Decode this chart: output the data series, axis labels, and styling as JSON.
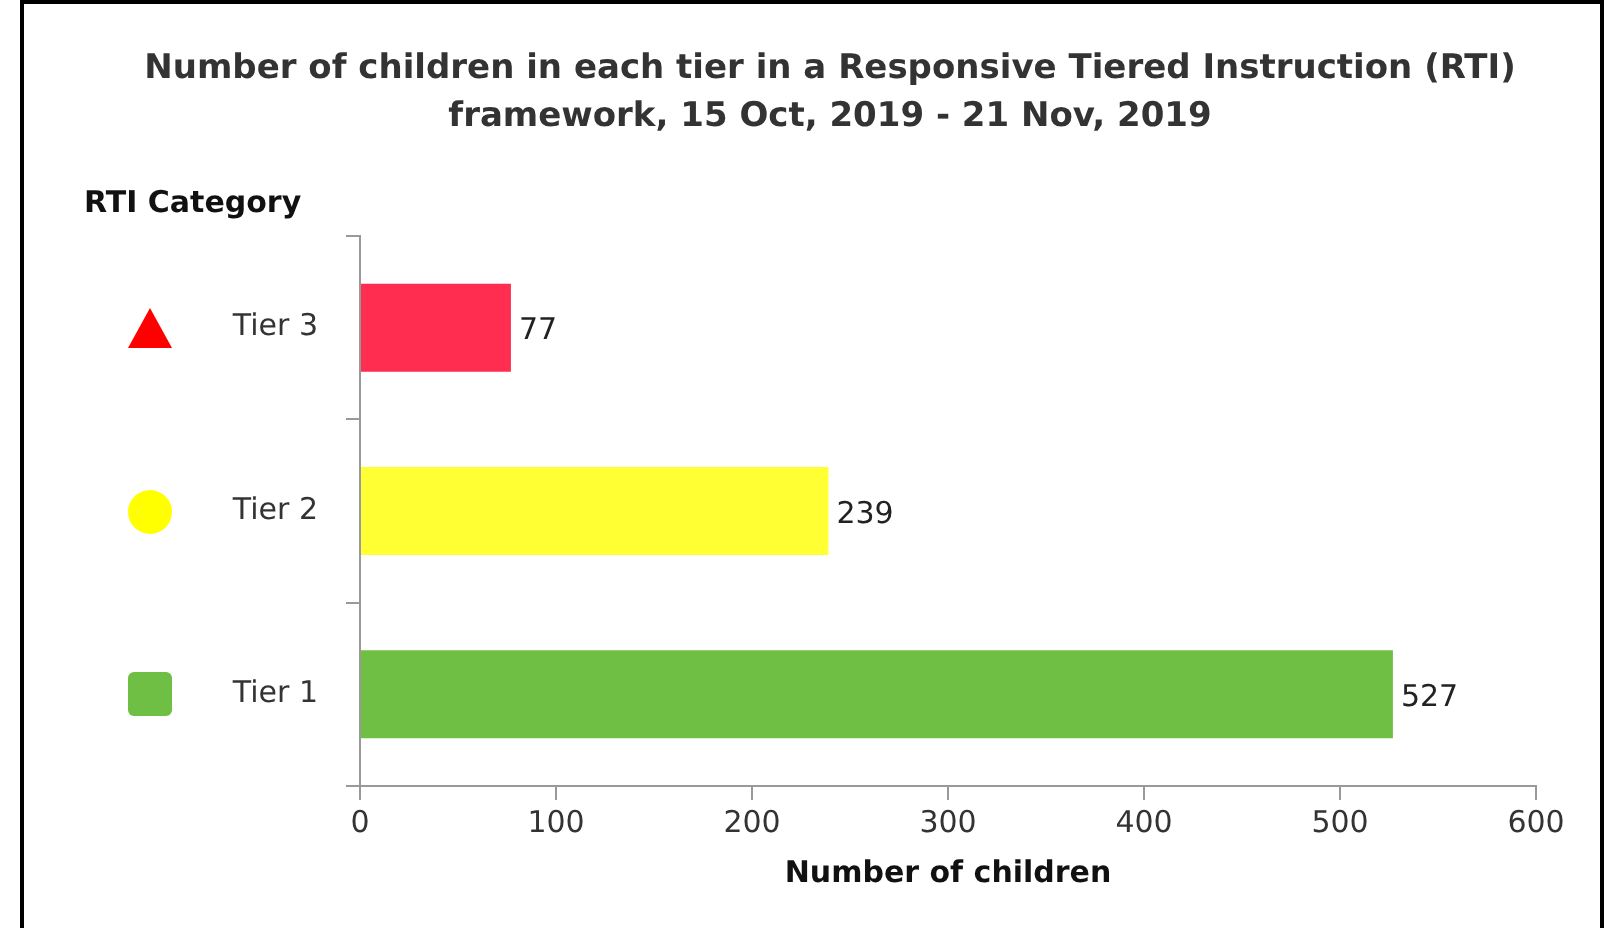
{
  "chart_data": {
    "type": "bar",
    "orientation": "horizontal",
    "title": "Number of children in each tier in a Responsive Tiered Instruction (RTI) framework, 15 Oct, 2019 - 21 Nov, 2019",
    "xlabel": "Number of children",
    "ylabel": "RTI Category",
    "categories": [
      "Tier 3",
      "Tier 2",
      "Tier 1"
    ],
    "values": [
      77,
      239,
      527
    ],
    "colors": [
      "#ff2d4f",
      "#ffff33",
      "#6fbf44"
    ],
    "xlim": [
      0,
      600
    ],
    "xticks": [
      0,
      100,
      200,
      300,
      400,
      500,
      600
    ],
    "data_labels": true,
    "grid": false,
    "legend": false
  }
}
